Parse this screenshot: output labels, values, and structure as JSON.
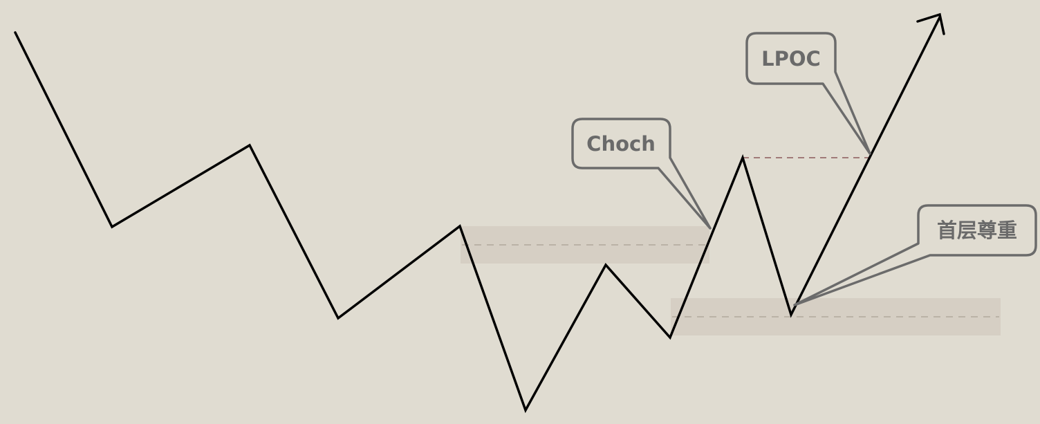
{
  "diagram": {
    "background_color": "#e0dcd1",
    "path_color": "#000000",
    "zone_color": "#d6cfc4",
    "callout_stroke": "#6b6b6b",
    "callout_text_color": "#6a6a6a",
    "dashed_zone_line_color": "#b0a89c",
    "dashed_high_line_color": "#8a5a5a"
  },
  "labels": {
    "choch": "Choch",
    "lpoc": "LPOC",
    "first_respect": "首层尊重"
  }
}
